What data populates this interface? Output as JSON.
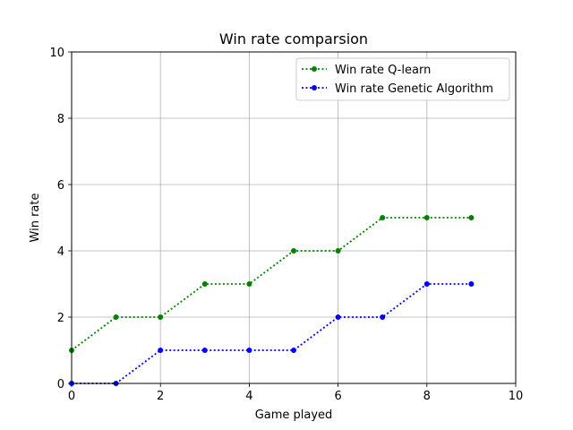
{
  "chart_data": {
    "type": "line",
    "title": "Win rate comparsion",
    "xlabel": "Game played",
    "ylabel": "Win rate",
    "xlim": [
      0,
      10
    ],
    "ylim": [
      0,
      10
    ],
    "xticks": [
      "0",
      "2",
      "4",
      "6",
      "8",
      "10"
    ],
    "yticks": [
      "0",
      "2",
      "4",
      "6",
      "8",
      "10"
    ],
    "grid": true,
    "legend_position": "top-right",
    "x": [
      0,
      1,
      2,
      3,
      4,
      5,
      6,
      7,
      8,
      9
    ],
    "series": [
      {
        "name": "Win rate Q-learn",
        "color": "#008000",
        "line_style": "dotted",
        "marker": "circle",
        "values": [
          1,
          2,
          2,
          3,
          3,
          4,
          4,
          5,
          5,
          5
        ]
      },
      {
        "name": "Win rate Genetic Algorithm",
        "color": "#0000ff",
        "line_style": "dotted",
        "marker": "circle",
        "values": [
          0,
          0,
          1,
          1,
          1,
          1,
          2,
          2,
          3,
          3
        ]
      }
    ]
  }
}
